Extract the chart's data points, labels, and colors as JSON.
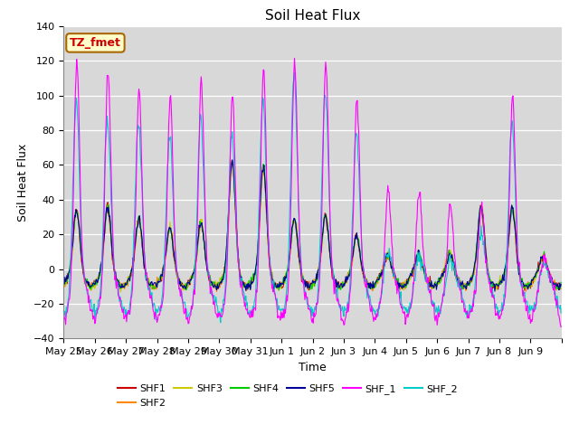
{
  "title": "Soil Heat Flux",
  "ylabel": "Soil Heat Flux",
  "xlabel": "Time",
  "annotation": "TZ_fmet",
  "n_days": 16,
  "ylim": [
    -40,
    140
  ],
  "yticks": [
    -40,
    -20,
    0,
    20,
    40,
    60,
    80,
    100,
    120,
    140
  ],
  "xtick_labels": [
    "May 25",
    "May 26",
    "May 27",
    "May 28",
    "May 29",
    "May 30",
    "May 31",
    "Jun 1",
    "Jun 2",
    "Jun 3",
    "Jun 4",
    "Jun 5",
    "Jun 6",
    "Jun 7",
    "Jun 8",
    "Jun 9"
  ],
  "series_colors": {
    "SHF1": "#cc0000",
    "SHF2": "#ff8800",
    "SHF3": "#cccc00",
    "SHF4": "#00cc00",
    "SHF5": "#000099",
    "SHF_1": "#ff00ff",
    "SHF_2": "#00cccc"
  },
  "fig_bg_color": "#ffffff",
  "plot_bg_color": "#d8d8d8",
  "grid_color": "#ffffff",
  "annotation_bg": "#ffffcc",
  "annotation_border": "#aa6600",
  "annotation_text_color": "#cc0000",
  "shf15_day_amps": [
    35,
    37,
    30,
    25,
    28,
    63,
    60,
    30,
    32,
    20,
    9,
    10,
    10,
    37,
    37,
    9
  ],
  "shf_1_day_amps": [
    122,
    117,
    106,
    101,
    111,
    101,
    117,
    122,
    122,
    101,
    49,
    47,
    39,
    39,
    103,
    9
  ],
  "shf_2_day_amps": [
    102,
    92,
    90,
    84,
    92,
    84,
    102,
    117,
    107,
    84,
    15,
    13,
    11,
    27,
    90,
    9
  ],
  "shf15_trough": -10,
  "shf_1_trough": -28,
  "shf_2_trough": -25
}
